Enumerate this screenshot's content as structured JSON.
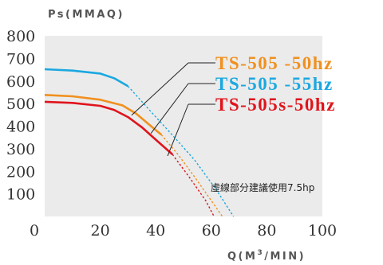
{
  "chart_data": {
    "type": "line",
    "ylabel": "Ps(MMAQ)",
    "xlabel_prefix": "Q(M",
    "xlabel_sup": "3",
    "xlabel_suffix": "/MIN)",
    "xlim": [
      0,
      100
    ],
    "ylim": [
      0,
      800
    ],
    "x_ticks": [
      "0",
      "20",
      "40",
      "60",
      "80",
      "100"
    ],
    "y_ticks": [
      "100",
      "200",
      "300",
      "400",
      "500",
      "600",
      "700",
      "800"
    ],
    "grid": false,
    "legend_position": "top-right",
    "note": "虛線部分建議使用7.5hp",
    "series": [
      {
        "name": "TS-505 -50hz",
        "color": "#f0901e",
        "solid": [
          [
            0,
            538
          ],
          [
            10,
            532
          ],
          [
            20,
            517
          ],
          [
            28,
            492
          ],
          [
            33,
            455
          ],
          [
            38,
            403
          ],
          [
            42,
            362
          ]
        ],
        "dashed": [
          [
            42,
            362
          ],
          [
            48,
            275
          ],
          [
            54,
            175
          ],
          [
            60,
            70
          ],
          [
            64,
            0
          ]
        ]
      },
      {
        "name": "TS-505 -55hz",
        "color": "#1aa8e0",
        "solid": [
          [
            0,
            652
          ],
          [
            10,
            646
          ],
          [
            20,
            633
          ],
          [
            25,
            612
          ],
          [
            30,
            577
          ]
        ],
        "dashed": [
          [
            30,
            577
          ],
          [
            38,
            468
          ],
          [
            46,
            360
          ],
          [
            54,
            250
          ],
          [
            62,
            115
          ],
          [
            68,
            0
          ]
        ]
      },
      {
        "name": "TS-505s-50hz",
        "color": "#e0141c",
        "solid": [
          [
            0,
            508
          ],
          [
            10,
            503
          ],
          [
            20,
            490
          ],
          [
            25,
            472
          ],
          [
            30,
            440
          ],
          [
            35,
            395
          ],
          [
            40,
            340
          ],
          [
            46,
            275
          ]
        ],
        "dashed": [
          [
            46,
            275
          ],
          [
            52,
            175
          ],
          [
            58,
            70
          ],
          [
            61,
            0
          ]
        ]
      }
    ]
  }
}
